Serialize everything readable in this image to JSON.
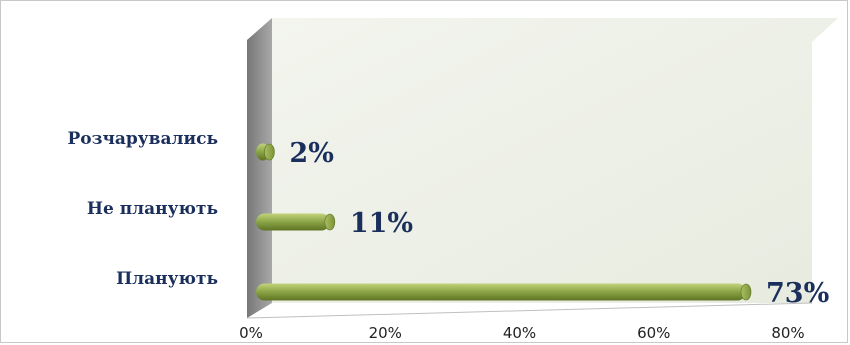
{
  "chart_data": {
    "type": "bar",
    "orientation": "horizontal",
    "categories": [
      "Розчарувались",
      "Не планують",
      "Планують"
    ],
    "values": [
      2,
      11,
      73
    ],
    "value_labels": [
      "2%",
      "11%",
      "73%"
    ],
    "xlim": [
      0,
      80
    ],
    "x_ticks": [
      "0%",
      "20%",
      "40%",
      "60%",
      "80%"
    ],
    "title": "",
    "xlabel": "",
    "ylabel": "",
    "grid": false,
    "legend": "none",
    "colors": {
      "bar": "#8fa84a",
      "bar_dark": "#5e7424",
      "bar_light": "#c2d47a",
      "wall": "#eef1e6",
      "wall_side": "#8a8a8a",
      "label": "#1b2f5c"
    }
  }
}
